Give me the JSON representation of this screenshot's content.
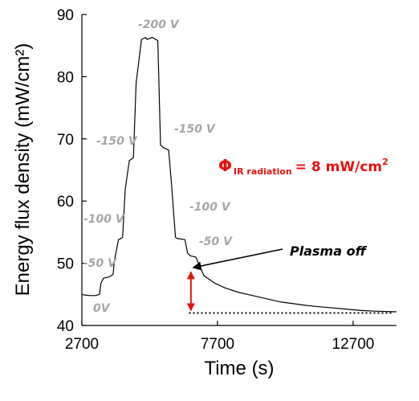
{
  "chart_data": {
    "type": "line",
    "xlabel": "Time (s)",
    "ylabel": "Energy flux density (mW/cm²)",
    "xlim": [
      2700,
      14300
    ],
    "ylim": [
      40,
      90
    ],
    "xticks": [
      2700,
      7700,
      12700
    ],
    "yticks": [
      40,
      50,
      60,
      70,
      80,
      90
    ],
    "grid": false,
    "series": [
      {
        "x": [
          2700,
          2800,
          3000,
          3200,
          3350,
          3400,
          3500,
          3700,
          3850,
          3900,
          3950,
          4050,
          4150,
          4200,
          4300,
          4450,
          4550,
          4600,
          4700,
          4900,
          5050,
          5100,
          5300,
          5500,
          5600,
          5700,
          5800,
          5900,
          6000,
          6150,
          6200,
          6500,
          6600,
          6650,
          6700,
          6900,
          7200,
          7600,
          8000,
          8500,
          9000,
          9500,
          10000,
          10500,
          11000,
          11500,
          12000,
          12500,
          13000,
          13500,
          14300
        ],
        "y": [
          45.0,
          44.9,
          44.8,
          44.8,
          45.0,
          46.8,
          47.6,
          47.8,
          48.2,
          50.5,
          51.5,
          53.8,
          54.0,
          54.2,
          62.0,
          66.5,
          66.8,
          67.0,
          79.0,
          86.0,
          86.3,
          86.0,
          86.3,
          85.8,
          69.0,
          68.6,
          68.4,
          68.2,
          63.0,
          54.2,
          54.0,
          53.8,
          51.6,
          51.4,
          51.2,
          51.0,
          48.0,
          46.8,
          46.0,
          45.3,
          44.8,
          44.3,
          43.8,
          43.5,
          43.2,
          43.0,
          42.8,
          42.6,
          42.4,
          42.3,
          42.2
        ]
      }
    ],
    "annotations": {
      "voltage_labels": [
        "0V",
        "-50 V",
        "-100 V",
        "-150 V",
        "-200 V",
        "-150 V",
        "-100 V",
        "-50 V"
      ],
      "plasma_off": "Plasma off",
      "phi_symbol": "Φ",
      "phi_subscript": "IR radiation",
      "phi_value": "= 8 mW/cm",
      "phi_superscript": "2",
      "baseline_y": 42.0
    },
    "colors": {
      "series": "#000000",
      "voltage_labels": "#a6a6a6",
      "phi": "#e8120c",
      "arrow": "#e8120c"
    }
  }
}
